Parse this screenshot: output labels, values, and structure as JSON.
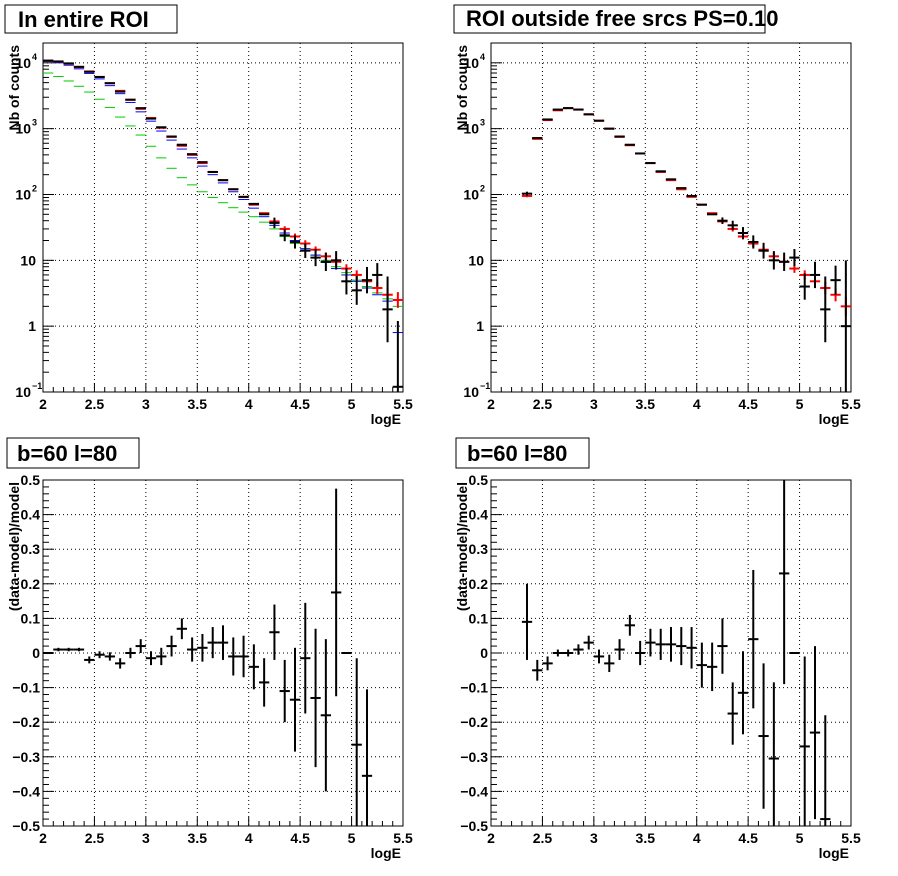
{
  "chart_data": [
    {
      "type": "scatter",
      "panel": "top-left",
      "title": "In entire ROI",
      "xlabel": "logE",
      "ylabel": "Nb of counts",
      "xlim": [
        2,
        5.5
      ],
      "ylim": [
        0.1,
        20000
      ],
      "yscale": "log",
      "grid": true,
      "x_ticks": [
        "2",
        "2.5",
        "3",
        "3.5",
        "4",
        "4.5",
        "5",
        "5.5"
      ],
      "y_ticks": [
        {
          "value": 0.1,
          "base": "10",
          "exp": "−1"
        },
        {
          "value": 1,
          "base": "1",
          "exp": ""
        },
        {
          "value": 10,
          "base": "10",
          "exp": ""
        },
        {
          "value": 100,
          "base": "10",
          "exp": "2"
        },
        {
          "value": 1000,
          "base": "10",
          "exp": "3"
        },
        {
          "value": 10000,
          "base": "10",
          "exp": "4"
        }
      ],
      "series": [
        {
          "color": "#00cc00",
          "width": 1,
          "x": [
            2.05,
            2.15,
            2.25,
            2.35,
            2.45,
            2.55,
            2.65,
            2.75,
            2.85,
            2.95,
            3.05,
            3.15,
            3.25,
            3.35,
            3.45,
            3.55,
            3.65,
            3.75,
            3.85,
            3.95,
            4.05,
            4.15,
            4.25,
            4.35,
            4.45,
            4.55,
            4.65,
            4.75,
            4.85,
            4.95,
            5.05,
            5.15,
            5.25,
            5.35,
            5.45
          ],
          "y": [
            7000,
            6200,
            5300,
            4400,
            3600,
            2800,
            2100,
            1500,
            1100,
            800,
            540,
            360,
            250,
            180,
            140,
            110,
            90,
            75,
            63,
            54,
            46,
            38,
            30,
            23,
            18,
            15,
            12,
            10,
            8,
            6.5,
            5,
            4,
            3.2,
            2.6,
            2
          ]
        },
        {
          "color": "#0000ff",
          "width": 1,
          "x": [
            2.05,
            2.15,
            2.25,
            2.35,
            2.45,
            2.55,
            2.65,
            2.75,
            2.85,
            2.95,
            3.05,
            3.15,
            3.25,
            3.35,
            3.45,
            3.55,
            3.65,
            3.75,
            3.85,
            3.95,
            4.05,
            4.15,
            4.25,
            4.35,
            4.45,
            4.55,
            4.65,
            4.75,
            4.85,
            4.95,
            5.05,
            5.15,
            5.25,
            5.35,
            5.45
          ],
          "y": [
            10500,
            10000,
            9200,
            8100,
            6900,
            5700,
            4500,
            3400,
            2500,
            1800,
            1300,
            920,
            670,
            490,
            360,
            270,
            200,
            150,
            110,
            84,
            62,
            46,
            34,
            26,
            20,
            15,
            12,
            9.3,
            7.5,
            6,
            4.8,
            3.8,
            3,
            2.4,
            0.8
          ]
        },
        {
          "color": "#ff0000",
          "width": 2,
          "x": [
            2.05,
            2.15,
            2.25,
            2.35,
            2.45,
            2.55,
            2.65,
            2.75,
            2.85,
            2.95,
            3.05,
            3.15,
            3.25,
            3.35,
            3.45,
            3.55,
            3.65,
            3.75,
            3.85,
            3.95,
            4.05,
            4.15,
            4.25,
            4.35,
            4.45,
            4.55,
            4.65,
            4.75,
            4.85,
            4.95,
            5.05,
            5.15,
            5.25,
            5.35,
            5.45
          ],
          "y": [
            10800,
            10400,
            9700,
            8600,
            7400,
            6100,
            4900,
            3750,
            2750,
            2000,
            1450,
            1030,
            750,
            550,
            400,
            300,
            220,
            165,
            120,
            92,
            70,
            52,
            39,
            30,
            23,
            18,
            14.5,
            11.5,
            9.5,
            7.5,
            6,
            4.8,
            3.8,
            3,
            2.5
          ],
          "yerr": [
            0,
            0,
            0,
            0,
            0,
            0,
            0,
            0,
            0,
            0,
            0,
            0,
            0,
            0,
            0,
            0,
            0,
            0,
            0,
            0,
            0,
            0,
            0,
            0.04,
            0.045,
            0.05,
            0.05,
            0.055,
            0.06,
            0.065,
            0.07,
            0.08,
            0.09,
            0.1,
            0.12
          ]
        },
        {
          "color": "#000000",
          "width": 2,
          "x": [
            2.05,
            2.15,
            2.25,
            2.35,
            2.45,
            2.55,
            2.65,
            2.75,
            2.85,
            2.95,
            3.05,
            3.15,
            3.25,
            3.35,
            3.45,
            3.55,
            3.65,
            3.75,
            3.85,
            3.95,
            4.05,
            4.15,
            4.25,
            4.35,
            4.45,
            4.55,
            4.65,
            4.75,
            4.85,
            4.95,
            5.05,
            5.15,
            5.25,
            5.35,
            5.45
          ],
          "y": [
            10800,
            10500,
            9800,
            8700,
            7300,
            6100,
            4900,
            3650,
            2750,
            2050,
            1420,
            1050,
            760,
            570,
            410,
            310,
            220,
            165,
            120,
            92,
            72,
            50,
            37,
            24,
            19,
            14,
            11,
            9.5,
            10,
            4.8,
            3.5,
            5,
            6,
            1.8,
            0.12
          ],
          "yerr": [
            0,
            0,
            0,
            0,
            0,
            0,
            0,
            0,
            0,
            0,
            0,
            0,
            0,
            0,
            0,
            0,
            0,
            0,
            0,
            0,
            0,
            0,
            0.08,
            0.09,
            0.1,
            0.11,
            0.13,
            0.14,
            0.14,
            0.2,
            0.22,
            0.2,
            0.18,
            0.5,
            1.0
          ]
        }
      ]
    },
    {
      "type": "scatter",
      "panel": "top-right",
      "title": "ROI outside free srcs PS=0.10",
      "xlabel": "logE",
      "ylabel": "Nb of counts",
      "xlim": [
        2,
        5.5
      ],
      "ylim": [
        0.1,
        20000
      ],
      "yscale": "log",
      "grid": true,
      "x_ticks": [
        "2",
        "2.5",
        "3",
        "3.5",
        "4",
        "4.5",
        "5",
        "5.5"
      ],
      "y_ticks": [
        {
          "value": 0.1,
          "base": "10",
          "exp": "−1"
        },
        {
          "value": 1,
          "base": "1",
          "exp": ""
        },
        {
          "value": 10,
          "base": "10",
          "exp": ""
        },
        {
          "value": 100,
          "base": "10",
          "exp": "2"
        },
        {
          "value": 1000,
          "base": "10",
          "exp": "3"
        },
        {
          "value": 10000,
          "base": "10",
          "exp": "4"
        }
      ],
      "series": [
        {
          "color": "#ff0000",
          "width": 2,
          "x": [
            2.35,
            2.45,
            2.55,
            2.65,
            2.75,
            2.85,
            2.95,
            3.05,
            3.15,
            3.25,
            3.35,
            3.45,
            3.55,
            3.65,
            3.75,
            3.85,
            3.95,
            4.05,
            4.15,
            4.25,
            4.35,
            4.45,
            4.55,
            4.65,
            4.75,
            4.85,
            4.95,
            5.05,
            5.15,
            5.25,
            5.35,
            5.45
          ],
          "y": [
            95,
            700,
            1350,
            1900,
            2050,
            1950,
            1650,
            1320,
            1000,
            750,
            560,
            420,
            300,
            220,
            165,
            120,
            92,
            70,
            52,
            39,
            30,
            23,
            18,
            14.5,
            11.5,
            9.5,
            7.5,
            6,
            4.8,
            3.8,
            3,
            2
          ],
          "yerr": [
            0.02,
            0,
            0,
            0,
            0,
            0,
            0,
            0,
            0,
            0,
            0,
            0,
            0,
            0,
            0,
            0,
            0,
            0,
            0,
            0,
            0.04,
            0.045,
            0.05,
            0.05,
            0.055,
            0.06,
            0.065,
            0.07,
            0.08,
            0.09,
            0.1,
            0.14
          ]
        },
        {
          "color": "#000000",
          "width": 2,
          "x": [
            2.35,
            2.45,
            2.55,
            2.65,
            2.75,
            2.85,
            2.95,
            3.05,
            3.15,
            3.25,
            3.35,
            3.45,
            3.55,
            3.65,
            3.75,
            3.85,
            3.95,
            4.05,
            4.15,
            4.25,
            4.35,
            4.45,
            4.55,
            4.65,
            4.75,
            4.85,
            4.95,
            5.05,
            5.15,
            5.25,
            5.35,
            5.45
          ],
          "y": [
            103,
            720,
            1380,
            1950,
            2050,
            1950,
            1650,
            1320,
            1000,
            760,
            570,
            420,
            300,
            225,
            170,
            125,
            95,
            70,
            50,
            40,
            34,
            26,
            19,
            14,
            10,
            9.5,
            11,
            4,
            6,
            1.8,
            5,
            1
          ],
          "yerr": [
            0.03,
            0,
            0,
            0,
            0,
            0,
            0,
            0,
            0,
            0,
            0,
            0,
            0,
            0,
            0,
            0,
            0,
            0,
            0,
            0.05,
            0.07,
            0.09,
            0.1,
            0.12,
            0.14,
            0.14,
            0.13,
            0.2,
            0.2,
            0.5,
            0.22,
            1.0
          ]
        }
      ]
    },
    {
      "type": "scatter",
      "panel": "bottom-left",
      "title": "b=60 l=80",
      "xlabel": "logE",
      "ylabel": "(data-model)/model",
      "xlim": [
        2,
        5.5
      ],
      "ylim": [
        -0.5,
        0.5
      ],
      "grid": true,
      "x_ticks": [
        "2",
        "2.5",
        "3",
        "3.5",
        "4",
        "4.5",
        "5",
        "5.5"
      ],
      "y_ticks": [
        "−0.5",
        "−0.4",
        "−0.3",
        "−0.2",
        "−0.1",
        "0",
        "0.1",
        "0.2",
        "0.3",
        "0.4",
        "0.5"
      ],
      "series": [
        {
          "color": "#000000",
          "width": 2,
          "x": [
            2.05,
            2.15,
            2.25,
            2.35,
            2.45,
            2.55,
            2.65,
            2.75,
            2.85,
            2.95,
            3.05,
            3.15,
            3.25,
            3.35,
            3.45,
            3.55,
            3.65,
            3.75,
            3.85,
            3.95,
            4.05,
            4.15,
            4.25,
            4.35,
            4.45,
            4.55,
            4.65,
            4.75,
            4.85,
            4.95,
            5.05,
            5.15
          ],
          "y": [
            0,
            0.01,
            0.01,
            0.01,
            -0.02,
            -0.005,
            -0.01,
            -0.03,
            0,
            0.02,
            -0.015,
            -0.01,
            0.02,
            0.07,
            0.01,
            0.015,
            0.03,
            0.03,
            -0.01,
            -0.01,
            -0.04,
            -0.085,
            0.06,
            -0.11,
            -0.135,
            -0.015,
            -0.13,
            -0.18,
            0.175,
            0,
            -0.265,
            -0.355
          ],
          "yerr": [
            0,
            0.005,
            0.005,
            0.005,
            0.01,
            0.01,
            0.012,
            0.015,
            0.015,
            0.02,
            0.02,
            0.025,
            0.03,
            0.03,
            0.035,
            0.04,
            0.045,
            0.05,
            0.055,
            0.06,
            0.065,
            0.07,
            0.08,
            0.09,
            0.15,
            0.16,
            0.2,
            0.22,
            0.3,
            0,
            0.25,
            0.25
          ]
        }
      ]
    },
    {
      "type": "scatter",
      "panel": "bottom-right",
      "title": "b=60 l=80",
      "xlabel": "logE",
      "ylabel": "(data-model)/model",
      "xlim": [
        2,
        5.5
      ],
      "ylim": [
        -0.5,
        0.5
      ],
      "grid": true,
      "x_ticks": [
        "2",
        "2.5",
        "3",
        "3.5",
        "4",
        "4.5",
        "5",
        "5.5"
      ],
      "y_ticks": [
        "−0.5",
        "−0.4",
        "−0.3",
        "−0.2",
        "−0.1",
        "0",
        "0.1",
        "0.2",
        "0.3",
        "0.4",
        "0.5"
      ],
      "series": [
        {
          "color": "#000000",
          "width": 2,
          "x": [
            2.35,
            2.45,
            2.55,
            2.65,
            2.75,
            2.85,
            2.95,
            3.05,
            3.15,
            3.25,
            3.35,
            3.45,
            3.55,
            3.65,
            3.75,
            3.85,
            3.95,
            4.05,
            4.15,
            4.25,
            4.35,
            4.45,
            4.55,
            4.65,
            4.75,
            4.85,
            4.95,
            5.05,
            5.15,
            5.25
          ],
          "y": [
            0.09,
            -0.05,
            -0.03,
            0,
            0,
            0.01,
            0.03,
            -0.01,
            -0.03,
            0.01,
            0.08,
            0,
            0.03,
            0.025,
            0.025,
            0.02,
            0.015,
            -0.035,
            -0.04,
            0.02,
            -0.175,
            -0.115,
            0.04,
            -0.24,
            -0.305,
            0.23,
            0,
            -0.27,
            -0.23,
            -0.48
          ],
          "yerr": [
            0.11,
            0.03,
            0.02,
            0.01,
            0.01,
            0.015,
            0.02,
            0.02,
            0.025,
            0.03,
            0.03,
            0.035,
            0.04,
            0.045,
            0.05,
            0.055,
            0.06,
            0.065,
            0.07,
            0.08,
            0.09,
            0.12,
            0.2,
            0.21,
            0.22,
            0.32,
            0,
            0.26,
            0.25,
            0.3
          ]
        }
      ]
    }
  ]
}
